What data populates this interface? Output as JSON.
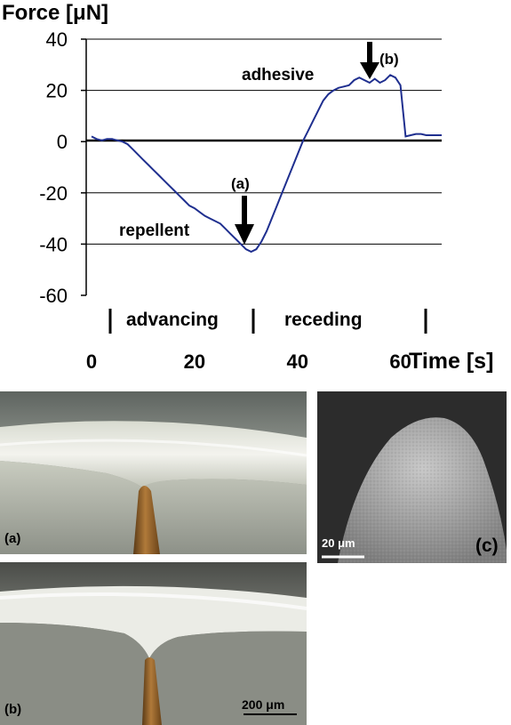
{
  "chart_data": {
    "type": "line",
    "ylabel": "Force [μN]",
    "xlabel": "Time [s]",
    "ylim": [
      -60,
      40
    ],
    "xlim": [
      0,
      68
    ],
    "y_ticks": [
      "40",
      "20",
      "0",
      "-20",
      "-40",
      "-60"
    ],
    "x_ticks": [
      "0",
      "20",
      "40",
      "60"
    ],
    "grid": true,
    "line_color": "#1f2f8f",
    "series": [
      {
        "x": [
          0,
          1,
          2,
          3,
          4,
          5,
          6,
          7,
          8,
          9,
          10,
          11,
          12,
          13,
          14,
          15,
          16,
          17,
          18,
          19,
          20,
          21,
          22,
          23,
          24,
          25,
          26,
          27,
          28,
          29,
          30,
          31,
          32,
          33,
          34,
          35,
          36,
          37,
          38,
          39,
          40,
          41,
          42,
          43,
          44,
          45,
          46,
          47,
          48,
          49,
          50,
          51,
          52,
          53,
          54,
          55,
          56,
          57,
          58,
          59,
          60,
          61,
          62,
          63,
          64,
          65,
          66,
          67,
          68
        ],
        "values": [
          2,
          1,
          0.5,
          1,
          1,
          0.5,
          0,
          -1,
          -3,
          -5,
          -7,
          -9,
          -11,
          -13,
          -15,
          -17,
          -19,
          -21,
          -23,
          -25,
          -26,
          -27.5,
          -29,
          -30,
          -31,
          -32,
          -34,
          -36,
          -38,
          -40,
          -42,
          -43,
          -42,
          -39,
          -35,
          -30,
          -25,
          -20,
          -15,
          -10,
          -5,
          0,
          4,
          8,
          12,
          16,
          18.5,
          20,
          21,
          21.5,
          22,
          24,
          25,
          24,
          23,
          24.5,
          23,
          24,
          26,
          25,
          22,
          2,
          2.5,
          3,
          3,
          2.5,
          2.5,
          2.5,
          2.5
        ]
      }
    ],
    "annotations": [
      "adhesive",
      "(b)",
      "(a)",
      "repellent"
    ],
    "phases": [
      "advancing",
      "receding"
    ]
  },
  "photos": {
    "panel_a_label": "(a)",
    "panel_b_label": "(b)",
    "panel_c_label": "(c)",
    "scale_b": "200 μm",
    "scale_c": "20 μm"
  }
}
